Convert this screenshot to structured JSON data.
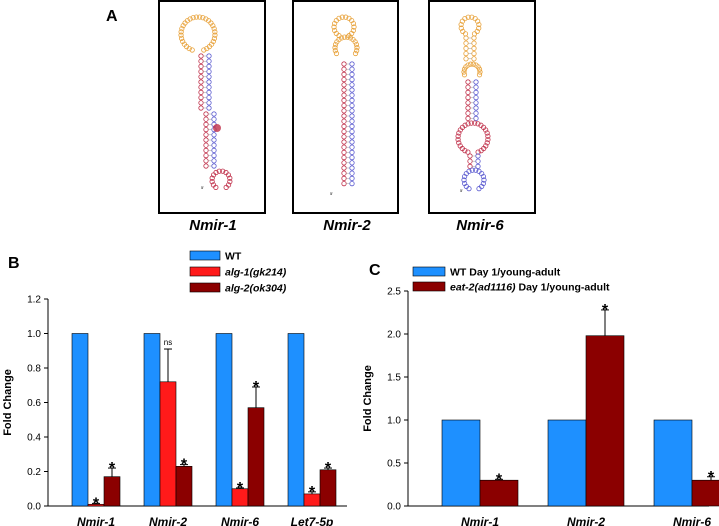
{
  "panel_a": {
    "letter": "A",
    "structures": [
      {
        "label": "Nmir-1"
      },
      {
        "label": "Nmir-2"
      },
      {
        "label": "Nmir-6"
      }
    ]
  },
  "colors": {
    "wt": "#1e90ff",
    "alg1": "#ff1a1a",
    "alg2": "#8b0000",
    "eat2": "#8b0000",
    "loop": "#e8a23a",
    "stem_a": "#c0304a",
    "stem_b": "#5a5ad0"
  },
  "chart_data": [
    {
      "panel": "B",
      "type": "bar",
      "title": "",
      "xlabel": "",
      "ylabel": "Fold Change",
      "ylim": [
        0,
        1.2
      ],
      "yticks": [
        "0.0",
        "0.2",
        "0.4",
        "0.6",
        "0.8",
        "1.0",
        "1.2"
      ],
      "categories": [
        "Nmir-1",
        "Nmir-2",
        "Nmir-6",
        "Let7-5p"
      ],
      "series": [
        {
          "name": "WT",
          "color": "#1e90ff",
          "values": [
            1.0,
            1.0,
            1.0,
            1.0
          ],
          "errors": [
            0,
            0,
            0,
            0
          ],
          "marks": [
            "",
            "",
            "",
            ""
          ]
        },
        {
          "name": "alg-1(gk214)",
          "color": "#ff1a1a",
          "values": [
            0.01,
            0.72,
            0.1,
            0.07
          ],
          "errors": [
            0.005,
            0.19,
            0.005,
            0.012
          ],
          "marks": [
            "*",
            "ns",
            "*",
            "*"
          ]
        },
        {
          "name": "alg-2(ok304)",
          "color": "#8b0000",
          "values": [
            0.17,
            0.23,
            0.57,
            0.21
          ],
          "errors": [
            0.05,
            0.01,
            0.12,
            0.01
          ],
          "marks": [
            "*",
            "*",
            "*",
            "*"
          ]
        }
      ],
      "legend_position": "top-right"
    },
    {
      "panel": "C",
      "type": "bar",
      "title": "",
      "xlabel": "",
      "ylabel": "Fold Change",
      "ylim": [
        0,
        2.5
      ],
      "yticks": [
        "0.0",
        "0.5",
        "1.0",
        "1.5",
        "2.0",
        "2.5"
      ],
      "categories": [
        "Nmir-1",
        "Nmir-2",
        "Nmir-6"
      ],
      "series": [
        {
          "name": "WT Day 1/young-adult",
          "color": "#1e90ff",
          "values": [
            1.0,
            1.0,
            1.0
          ],
          "errors": [
            0,
            0,
            0
          ],
          "marks": [
            "",
            "",
            ""
          ]
        },
        {
          "name": "eat-2(ad1116) Day 1/young-adult",
          "color": "#8b0000",
          "values": [
            0.3,
            1.98,
            0.3
          ],
          "errors": [
            0.01,
            0.3,
            0.04
          ],
          "marks": [
            "*",
            "*",
            "*"
          ]
        }
      ],
      "legend_position": "top-left"
    }
  ]
}
